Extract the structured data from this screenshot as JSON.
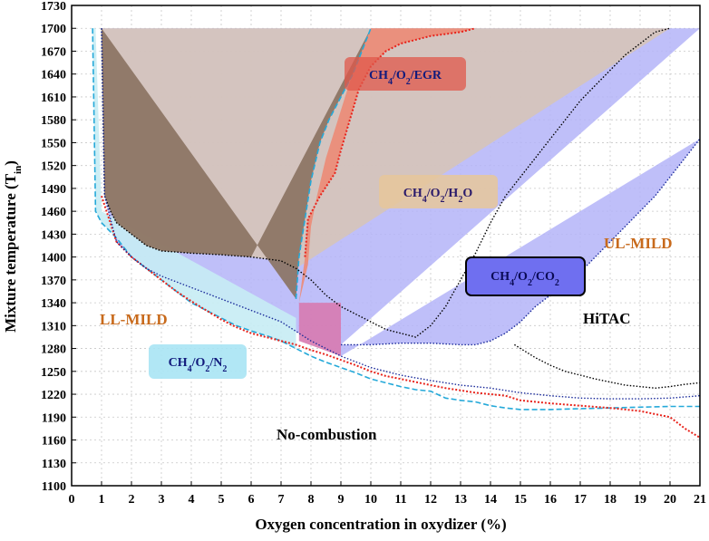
{
  "chart_data": {
    "type": "area",
    "xlabel": "Oxygen concentration in oxydizer (%)",
    "ylabel": "Mixture temperature (T",
    "ylabel_sub": "in",
    "ylabel_end": ")",
    "xlim": [
      0,
      21
    ],
    "ylim": [
      1100,
      1730
    ],
    "xticks": [
      0,
      1,
      2,
      3,
      4,
      5,
      6,
      7,
      8,
      9,
      10,
      11,
      12,
      13,
      14,
      15,
      16,
      17,
      18,
      19,
      20,
      21
    ],
    "yticks": [
      1100,
      1130,
      1160,
      1190,
      1220,
      1250,
      1280,
      1310,
      1340,
      1370,
      1400,
      1430,
      1460,
      1490,
      1520,
      1550,
      1580,
      1610,
      1640,
      1670,
      1700,
      1730
    ],
    "grid": true,
    "colors": {
      "n2": "#25a9d9",
      "h2o": "#000000",
      "egr": "#e8231b",
      "co2": "#1a2a9a",
      "brown_fill": "#8a7260",
      "tan_fill": "#d6c4b8",
      "red_fill": "#ec8b76",
      "blue_fill": "#b4b4f8",
      "cyan_fill": "#c6ecf4",
      "mild_text": "#c86a1c"
    },
    "region_labels": {
      "ll_mild": "LL-MILD",
      "ul_mild": "UL-MILD",
      "hitac": "HiTAC",
      "no_combustion": "No-combustion"
    },
    "series_labels": {
      "egr": {
        "base": "CH",
        "s1": "4",
        "mid": "/O",
        "s2": "2",
        "tail": "/EGR"
      },
      "h2o": {
        "base": "CH",
        "s1": "4",
        "mid": "/O",
        "s2": "2",
        "tail": "/H",
        "s3": "2",
        "end": "O"
      },
      "co2": {
        "base": "CH",
        "s1": "4",
        "mid": "/O",
        "s2": "2",
        "tail": "/CO",
        "s3": "2"
      },
      "n2": {
        "base": "CH",
        "s1": "4",
        "mid": "/O",
        "s2": "2",
        "tail": "/N",
        "s3": "2"
      }
    },
    "series": [
      {
        "key": "n2",
        "boundary": [
          [
            0.7,
            1700
          ],
          [
            0.8,
            1460
          ],
          [
            1.0,
            1445
          ],
          [
            1.5,
            1425
          ],
          [
            2.0,
            1400
          ],
          [
            2.5,
            1385
          ],
          [
            3.0,
            1370
          ],
          [
            3.5,
            1355
          ],
          [
            4.0,
            1340
          ],
          [
            4.5,
            1330
          ],
          [
            5.0,
            1320
          ],
          [
            5.5,
            1310
          ],
          [
            6.0,
            1303
          ],
          [
            6.5,
            1297
          ],
          [
            7.0,
            1290
          ],
          [
            7.5,
            1280
          ],
          [
            8.0,
            1270
          ],
          [
            8.5,
            1262
          ],
          [
            9.0,
            1255
          ],
          [
            9.5,
            1248
          ],
          [
            10.0,
            1240
          ],
          [
            10.5,
            1235
          ],
          [
            11.0,
            1230
          ],
          [
            11.5,
            1226
          ],
          [
            12.0,
            1224
          ],
          [
            12.5,
            1215
          ],
          [
            13.0,
            1212
          ],
          [
            13.5,
            1210
          ],
          [
            14.0,
            1205
          ],
          [
            14.5,
            1202
          ],
          [
            15.0,
            1200
          ],
          [
            16.0,
            1200
          ],
          [
            17.0,
            1201
          ],
          [
            18.0,
            1202
          ],
          [
            19.0,
            1203
          ],
          [
            20.0,
            1204
          ],
          [
            21.0,
            1204
          ]
        ],
        "upper": [
          [
            7.5,
            1345
          ],
          [
            7.6,
            1400
          ],
          [
            7.8,
            1450
          ],
          [
            8.0,
            1500
          ],
          [
            8.3,
            1550
          ],
          [
            8.6,
            1580
          ],
          [
            9.0,
            1610
          ],
          [
            9.4,
            1640
          ],
          [
            9.7,
            1670
          ],
          [
            10.0,
            1700
          ]
        ]
      },
      {
        "key": "h2o",
        "boundary": [
          [
            1.0,
            1700
          ],
          [
            1.1,
            1480
          ],
          [
            1.3,
            1460
          ],
          [
            1.5,
            1445
          ],
          [
            2.0,
            1430
          ],
          [
            2.5,
            1415
          ],
          [
            3.0,
            1408
          ],
          [
            4.0,
            1405
          ],
          [
            5.0,
            1403
          ],
          [
            6.0,
            1400
          ],
          [
            7.0,
            1395
          ],
          [
            7.5,
            1385
          ],
          [
            8.0,
            1370
          ],
          [
            8.5,
            1350
          ],
          [
            9.0,
            1335
          ],
          [
            9.5,
            1325
          ],
          [
            10.0,
            1315
          ],
          [
            10.5,
            1305
          ],
          [
            11.0,
            1300
          ],
          [
            11.5,
            1295
          ],
          [
            12.0,
            1310
          ],
          [
            12.5,
            1335
          ],
          [
            13.0,
            1370
          ],
          [
            13.5,
            1405
          ],
          [
            14.0,
            1445
          ],
          [
            14.5,
            1480
          ],
          [
            15.0,
            1505
          ],
          [
            15.5,
            1530
          ],
          [
            16.0,
            1555
          ],
          [
            16.5,
            1580
          ],
          [
            17.0,
            1605
          ],
          [
            17.5,
            1625
          ],
          [
            18.0,
            1645
          ],
          [
            18.5,
            1665
          ],
          [
            19.0,
            1680
          ],
          [
            19.5,
            1695
          ],
          [
            20.0,
            1700
          ]
        ],
        "hitac": [
          [
            14.8,
            1285
          ],
          [
            15.5,
            1268
          ],
          [
            16.0,
            1258
          ],
          [
            16.5,
            1250
          ],
          [
            17.0,
            1245
          ],
          [
            17.5,
            1240
          ],
          [
            18.0,
            1236
          ],
          [
            18.5,
            1232
          ],
          [
            19.0,
            1230
          ],
          [
            19.5,
            1228
          ],
          [
            20.0,
            1230
          ],
          [
            20.5,
            1233
          ],
          [
            21.0,
            1235
          ]
        ]
      },
      {
        "key": "egr",
        "boundary": [
          [
            1.0,
            1480
          ],
          [
            1.5,
            1420
          ],
          [
            2.0,
            1400
          ],
          [
            2.5,
            1385
          ],
          [
            3.0,
            1370
          ],
          [
            3.5,
            1355
          ],
          [
            4.0,
            1342
          ],
          [
            4.5,
            1330
          ],
          [
            5.0,
            1318
          ],
          [
            5.5,
            1308
          ],
          [
            6.0,
            1300
          ],
          [
            6.5,
            1295
          ],
          [
            7.0,
            1290
          ],
          [
            7.5,
            1285
          ],
          [
            8.0,
            1278
          ],
          [
            8.5,
            1272
          ],
          [
            9.0,
            1265
          ],
          [
            9.5,
            1258
          ],
          [
            10.0,
            1250
          ],
          [
            10.5,
            1244
          ],
          [
            11.0,
            1240
          ],
          [
            11.5,
            1236
          ],
          [
            12.0,
            1232
          ],
          [
            12.5,
            1228
          ],
          [
            13.0,
            1225
          ],
          [
            13.5,
            1222
          ],
          [
            14.0,
            1220
          ],
          [
            14.5,
            1218
          ],
          [
            15.0,
            1212
          ],
          [
            16.0,
            1208
          ],
          [
            17.0,
            1205
          ],
          [
            18.0,
            1202
          ],
          [
            19.0,
            1198
          ],
          [
            20.0,
            1190
          ],
          [
            20.5,
            1175
          ],
          [
            21.0,
            1163
          ]
        ],
        "upper": [
          [
            7.8,
            1400
          ],
          [
            7.9,
            1450
          ],
          [
            8.3,
            1480
          ],
          [
            8.8,
            1510
          ],
          [
            9.0,
            1540
          ],
          [
            9.3,
            1580
          ],
          [
            9.6,
            1620
          ],
          [
            10.0,
            1650
          ],
          [
            10.5,
            1670
          ],
          [
            11.0,
            1680
          ],
          [
            12.0,
            1690
          ],
          [
            13.0,
            1695
          ],
          [
            13.5,
            1700
          ]
        ]
      },
      {
        "key": "co2",
        "boundary": [
          [
            1.0,
            1700
          ],
          [
            1.1,
            1480
          ],
          [
            1.5,
            1420
          ],
          [
            2.0,
            1400
          ],
          [
            2.5,
            1385
          ],
          [
            3.0,
            1375
          ],
          [
            4.0,
            1360
          ],
          [
            5.0,
            1345
          ],
          [
            6.0,
            1330
          ],
          [
            7.0,
            1315
          ],
          [
            8.0,
            1290
          ],
          [
            9.0,
            1270
          ],
          [
            10.0,
            1255
          ],
          [
            11.0,
            1245
          ],
          [
            12.0,
            1238
          ],
          [
            13.0,
            1232
          ],
          [
            14.0,
            1228
          ],
          [
            15.0,
            1222
          ],
          [
            16.0,
            1218
          ],
          [
            17.0,
            1215
          ],
          [
            18.0,
            1214
          ],
          [
            19.0,
            1214
          ],
          [
            20.0,
            1215
          ],
          [
            21.0,
            1218
          ]
        ],
        "upper": [
          [
            9.0,
            1285
          ],
          [
            10.0,
            1285
          ],
          [
            11.0,
            1287
          ],
          [
            12.0,
            1287
          ],
          [
            13.0,
            1285
          ],
          [
            13.5,
            1285
          ],
          [
            14.0,
            1290
          ],
          [
            14.5,
            1300
          ],
          [
            15.0,
            1315
          ],
          [
            15.5,
            1335
          ],
          [
            16.0,
            1350
          ],
          [
            16.5,
            1365
          ],
          [
            17.0,
            1380
          ],
          [
            17.5,
            1400
          ],
          [
            18.0,
            1420
          ],
          [
            18.5,
            1440
          ],
          [
            19.0,
            1460
          ],
          [
            19.5,
            1480
          ],
          [
            20.0,
            1505
          ],
          [
            20.5,
            1530
          ],
          [
            21.0,
            1555
          ]
        ]
      }
    ]
  }
}
